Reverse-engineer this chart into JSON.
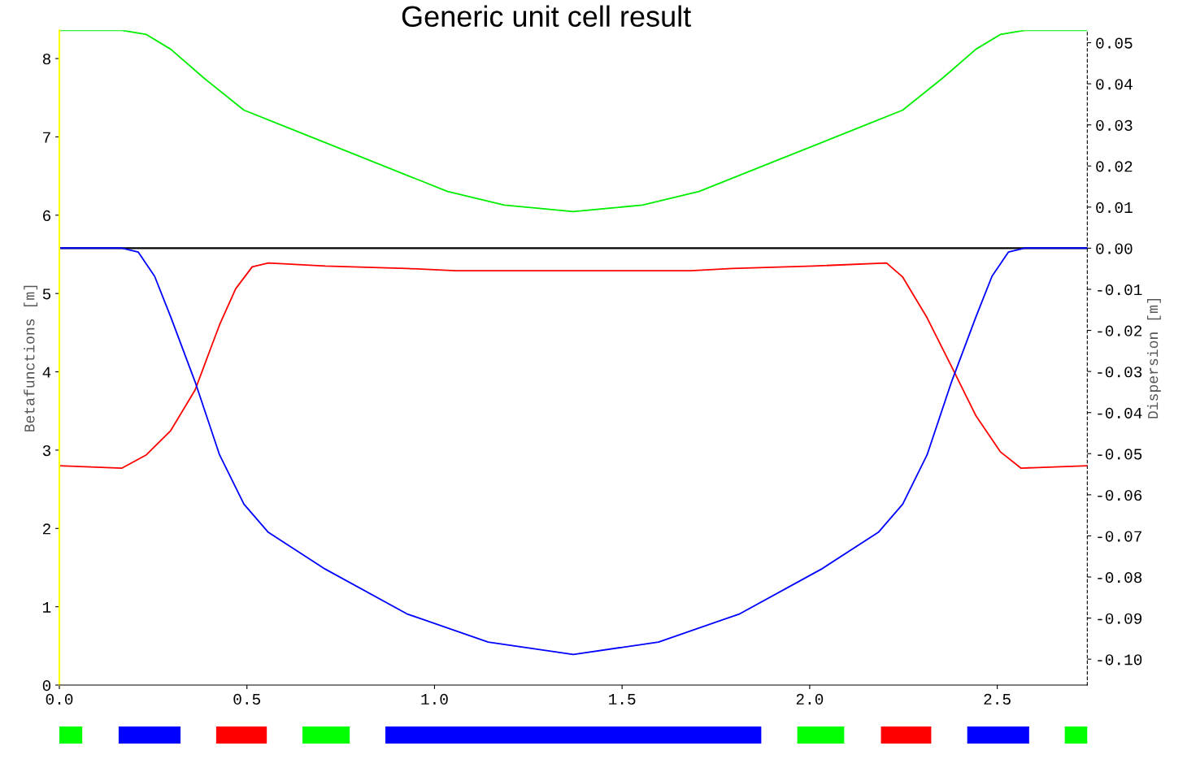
{
  "chart_data": [
    {
      "type": "line",
      "title": "Generic unit cell result",
      "ylabel": "Betafunctions [m]",
      "y2label": "Dispersion [m]",
      "xlim": [
        0,
        2.74
      ],
      "xticks": [
        {
          "value": 0,
          "label": "0.0"
        },
        {
          "value": 0.5,
          "label": "0.5"
        },
        {
          "value": 1,
          "label": "1.0"
        },
        {
          "value": 1.5,
          "label": "1.5"
        },
        {
          "value": 2,
          "label": "2.0"
        },
        {
          "value": 2.5,
          "label": "2.5"
        }
      ],
      "ylim": [
        0,
        8.36
      ],
      "yticks": [
        0,
        1,
        2,
        3,
        4,
        5,
        6,
        7,
        8
      ],
      "y2lim": [
        -0.1063,
        0.053
      ],
      "y2ticks": [
        {
          "value": 0.05,
          "label": "0.05"
        },
        {
          "value": 0.04,
          "label": "0.04"
        },
        {
          "value": 0.03,
          "label": "0.03"
        },
        {
          "value": 0.02,
          "label": "0.02"
        },
        {
          "value": 0.01,
          "label": "0.01"
        },
        {
          "value": 0,
          "label": "0.00"
        },
        {
          "value": -0.01,
          "label": "-0.01"
        },
        {
          "value": -0.02,
          "label": "-0.02"
        },
        {
          "value": -0.03,
          "label": "-0.03"
        },
        {
          "value": -0.04,
          "label": "-0.04"
        },
        {
          "value": -0.05,
          "label": "-0.05"
        },
        {
          "value": -0.06,
          "label": "-0.06"
        },
        {
          "value": -0.07,
          "label": "-0.07"
        },
        {
          "value": -0.08,
          "label": "-0.08"
        },
        {
          "value": -0.09,
          "label": "-0.09"
        },
        {
          "value": -0.1,
          "label": "-0.10"
        }
      ],
      "grid": false,
      "legend": false,
      "marker": "none",
      "line_style": "solid",
      "ref_lines": [
        {
          "axis": "y2",
          "value": 0,
          "color": "#000000"
        }
      ],
      "series": [
        {
          "color": "#ff0000",
          "x": [
            0,
            0.167,
            0.232,
            0.297,
            0.362,
            0.427,
            0.47,
            0.514,
            0.557,
            0.709,
            0.926,
            1.056,
            1.37,
            1.684,
            1.793,
            2.01,
            2.205,
            2.248,
            2.313,
            2.378,
            2.443,
            2.508,
            2.563,
            2.74
          ],
          "values": [
            2.8,
            2.77,
            2.94,
            3.25,
            3.77,
            4.6,
            5.06,
            5.34,
            5.39,
            5.35,
            5.32,
            5.29,
            5.29,
            5.29,
            5.32,
            5.35,
            5.39,
            5.21,
            4.69,
            4.07,
            3.44,
            2.98,
            2.77,
            2.8
          ]
        },
        {
          "color": "#0000ff",
          "x": [
            0,
            0.167,
            0.21,
            0.254,
            0.297,
            0.362,
            0.427,
            0.492,
            0.557,
            0.709,
            0.926,
            1.143,
            1.37,
            1.597,
            1.814,
            2.031,
            2.183,
            2.248,
            2.313,
            2.378,
            2.443,
            2.486,
            2.53,
            2.573,
            2.74
          ],
          "values": [
            5.58,
            5.58,
            5.53,
            5.22,
            4.7,
            3.87,
            2.94,
            2.31,
            1.95,
            1.48,
            0.91,
            0.55,
            0.39,
            0.55,
            0.91,
            1.48,
            1.95,
            2.31,
            2.94,
            3.87,
            4.7,
            5.22,
            5.53,
            5.58,
            5.58
          ]
        },
        {
          "color": "#00ee00",
          "axis": "y2",
          "x": [
            0,
            0.167,
            0.232,
            0.297,
            0.384,
            0.492,
            0.601,
            0.818,
            1.035,
            1.186,
            1.37,
            1.554,
            1.705,
            1.922,
            2.139,
            2.248,
            2.356,
            2.443,
            2.508,
            2.573,
            2.74
          ],
          "values": [
            0.053,
            0.053,
            0.052,
            0.0484,
            0.0415,
            0.0336,
            0.0296,
            0.0217,
            0.0138,
            0.0105,
            0.0089,
            0.0105,
            0.0138,
            0.0217,
            0.0296,
            0.0336,
            0.0415,
            0.0484,
            0.052,
            0.053,
            0.053
          ]
        }
      ]
    },
    {
      "type": "bar",
      "orientation": "horizontal",
      "categories": [
        null
      ],
      "xlim": [
        0,
        2.74
      ],
      "series": [
        {
          "color": "#00ff00",
          "base": [
            0
          ],
          "values": [
            0.061
          ]
        },
        {
          "color": "#0000ff",
          "base": [
            0.158
          ],
          "values": [
            0.165
          ]
        },
        {
          "color": "#ff0000",
          "base": [
            0.418
          ],
          "values": [
            0.135
          ]
        },
        {
          "color": "#00ff00",
          "base": [
            0.648
          ],
          "values": [
            0.126
          ]
        },
        {
          "color": "#0000ff",
          "base": [
            0.869
          ],
          "values": [
            1.002
          ]
        },
        {
          "color": "#00ff00",
          "base": [
            1.967
          ],
          "values": [
            0.125
          ]
        },
        {
          "color": "#ff0000",
          "base": [
            2.19
          ],
          "values": [
            0.134
          ]
        },
        {
          "color": "#0000ff",
          "base": [
            2.42
          ],
          "values": [
            0.165
          ]
        },
        {
          "color": "#00ff00",
          "base": [
            2.68
          ],
          "values": [
            0.061
          ]
        }
      ]
    }
  ]
}
